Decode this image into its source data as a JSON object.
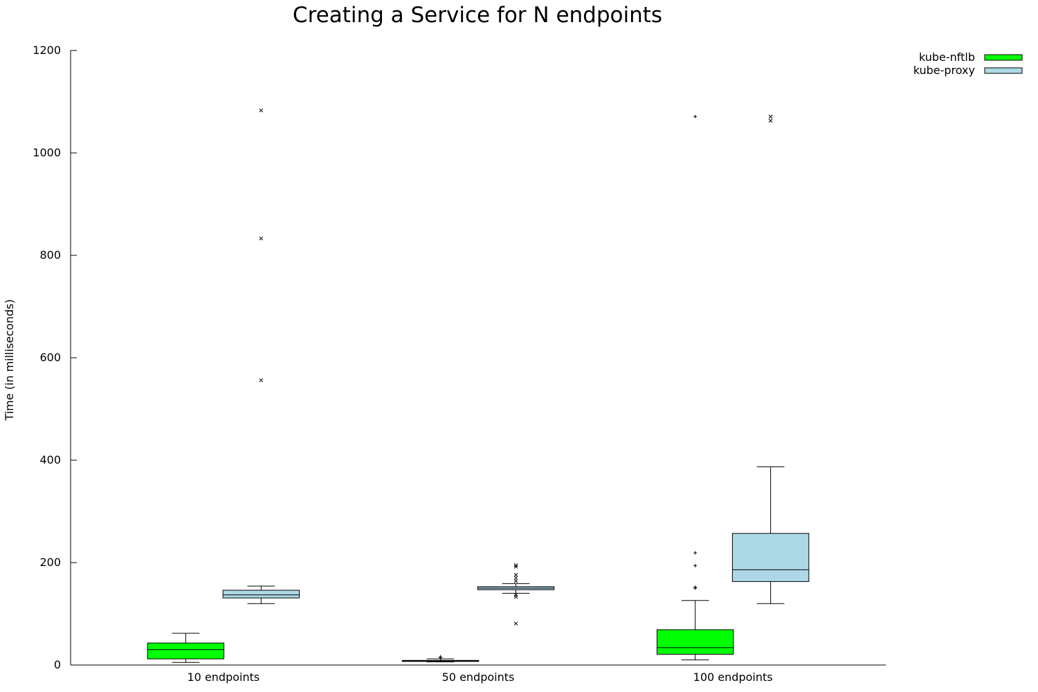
{
  "chart_data": {
    "type": "box",
    "title": "Creating a Service for N endpoints",
    "xlabel": "",
    "ylabel": "Time (in milliseconds)",
    "ylim": [
      0,
      1200
    ],
    "yticks": [
      0,
      200,
      400,
      600,
      800,
      1000,
      1200
    ],
    "categories": [
      "10 endpoints",
      "50 endpoints",
      "100 endpoints"
    ],
    "grid": false,
    "legend_position": "top-right",
    "series": [
      {
        "name": "kube-nftlb",
        "color": "#00ff00",
        "outlier_marker": "+",
        "boxes": [
          {
            "whisker_low": 5,
            "q1": 12,
            "median": 30,
            "q3": 43,
            "whisker_high": 62,
            "outliers": []
          },
          {
            "whisker_low": 6,
            "q1": 7,
            "median": 8,
            "q3": 9,
            "whisker_high": 12,
            "outliers": [
              14,
              16
            ]
          },
          {
            "whisker_low": 10,
            "q1": 21,
            "median": 34,
            "q3": 69,
            "whisker_high": 126,
            "outliers": [
              150,
              152,
              194,
              219,
              1071
            ]
          }
        ]
      },
      {
        "name": "kube-proxy",
        "color": "#add8e6",
        "outlier_marker": "x",
        "boxes": [
          {
            "whisker_low": 120,
            "q1": 131,
            "median": 137,
            "q3": 146,
            "whisker_high": 154,
            "outliers": [
              556,
              833,
              1083
            ]
          },
          {
            "whisker_low": 140,
            "q1": 147,
            "median": 150,
            "q3": 153,
            "whisker_high": 159,
            "outliers": [
              81,
              133,
              137,
              164,
              170,
              176,
              192,
              195
            ]
          },
          {
            "whisker_low": 120,
            "q1": 163,
            "median": 186,
            "q3": 257,
            "whisker_high": 387,
            "outliers": [
              1063,
              1071
            ]
          }
        ]
      }
    ]
  }
}
